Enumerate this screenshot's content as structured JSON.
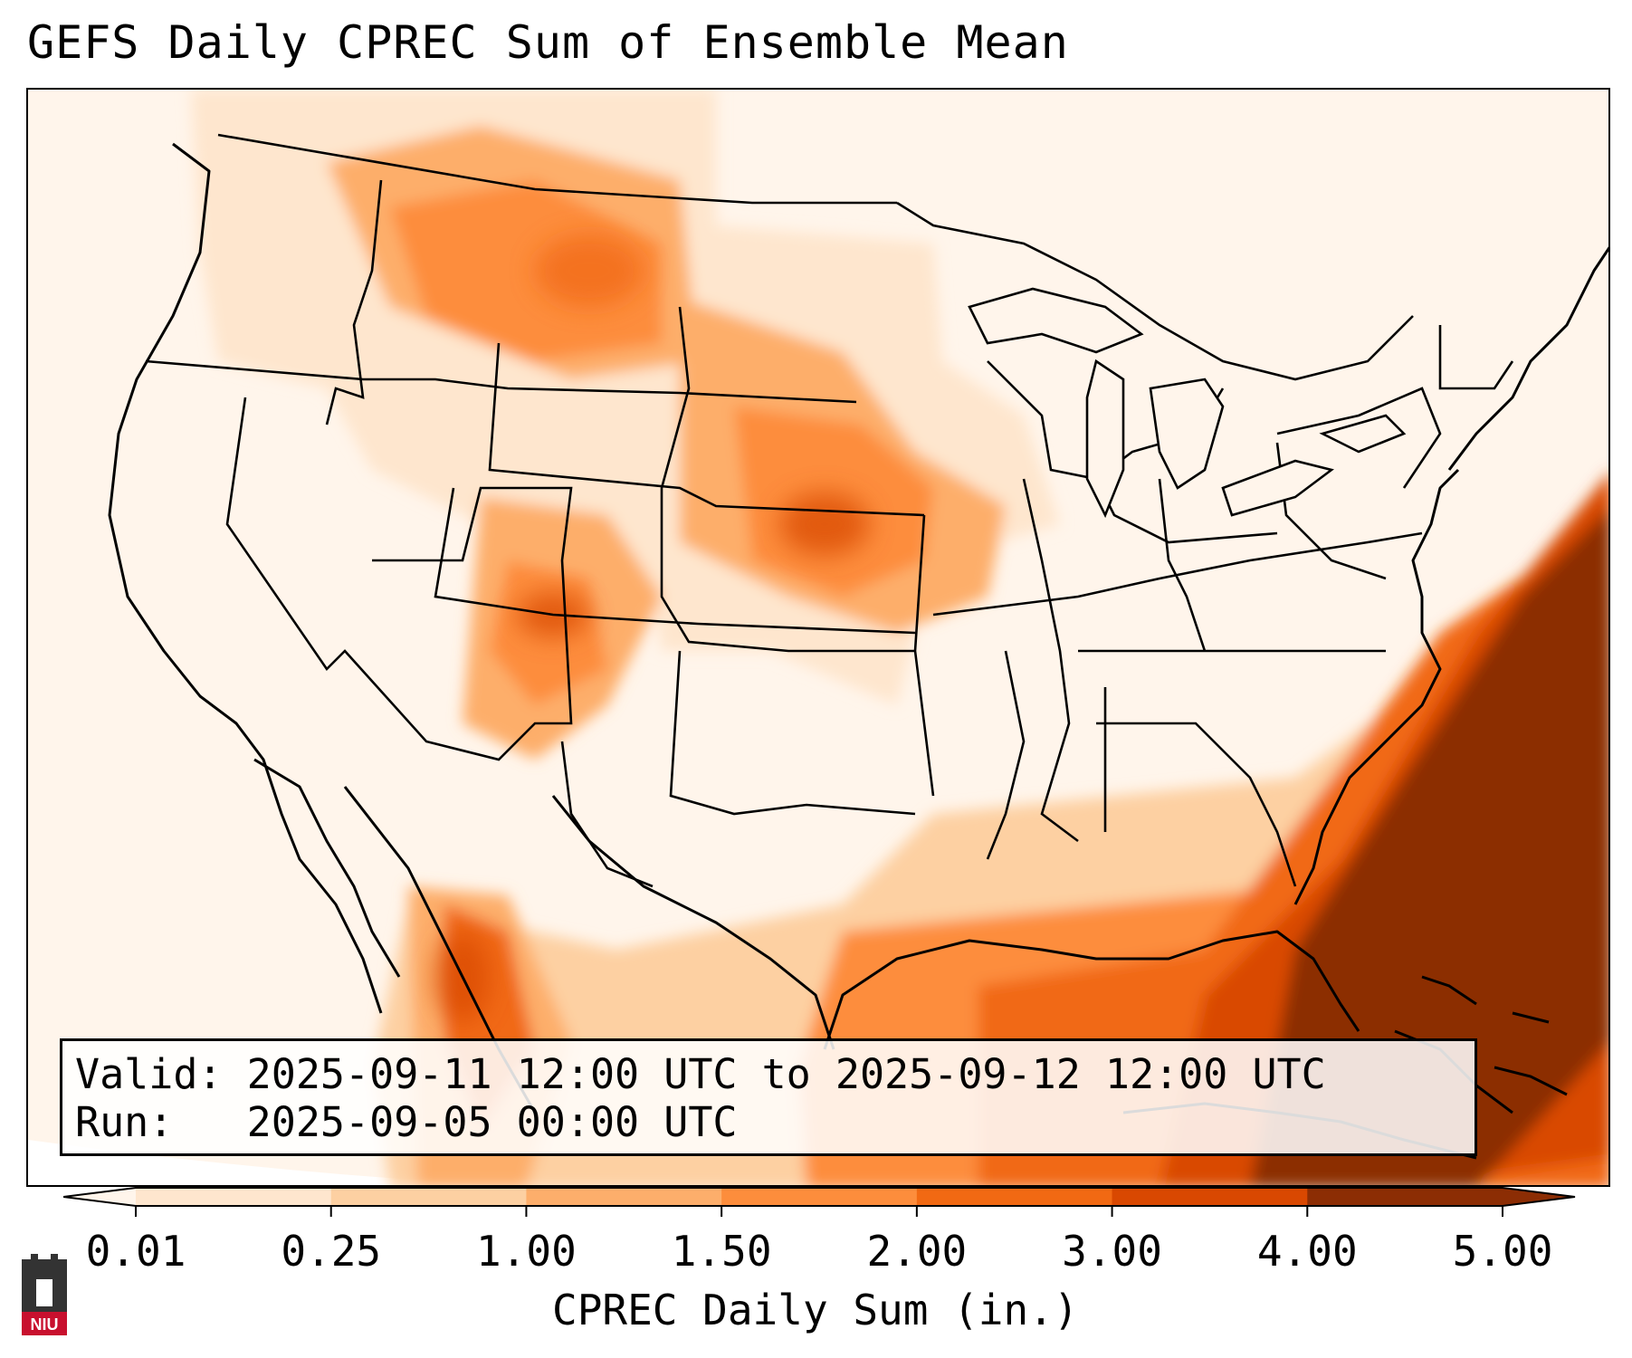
{
  "title": "GEFS Daily CPREC Sum of Ensemble Mean",
  "info": {
    "valid_label": "Valid:",
    "valid_value": "2025-09-11 12:00 UTC to 2025-09-12 12:00 UTC",
    "run_label": "Run:",
    "run_value": "2025-09-05 00:00 UTC"
  },
  "colorbar": {
    "title": "CPREC Daily Sum (in.)",
    "ticks": [
      "0.01",
      "0.25",
      "1.00",
      "1.50",
      "2.00",
      "3.00",
      "4.00",
      "5.00"
    ],
    "colors": [
      "#fff5eb",
      "#fee6ce",
      "#fdd0a2",
      "#fdae6b",
      "#fd8d3c",
      "#f16913",
      "#d94801",
      "#8c2d04"
    ]
  },
  "map": {
    "region": "Contiguous United States",
    "field": "GEFS ensemble mean convective precipitation"
  },
  "logo": {
    "text": "NIU",
    "color": "#c8102e"
  }
}
